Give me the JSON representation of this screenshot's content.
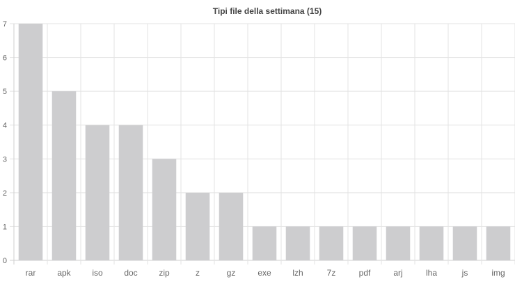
{
  "chart_data": {
    "type": "bar",
    "title": "Tipi file della settimana (15)",
    "xlabel": "",
    "ylabel": "",
    "categories": [
      "rar",
      "apk",
      "iso",
      "doc",
      "zip",
      "z",
      "gz",
      "exe",
      "lzh",
      "7z",
      "pdf",
      "arj",
      "lha",
      "js",
      "img"
    ],
    "values": [
      7,
      5,
      4,
      4,
      3,
      2,
      2,
      1,
      1,
      1,
      1,
      1,
      1,
      1,
      1
    ],
    "ylim": [
      0,
      7
    ],
    "yticks": [
      "0",
      "1",
      "2",
      "3",
      "4",
      "5",
      "6",
      "7"
    ],
    "grid": true,
    "legend": "none",
    "bar_color": "#cdcdcf",
    "grid_color": "#e3e3e3",
    "text_color": "#666666",
    "title_color": "#444444"
  }
}
